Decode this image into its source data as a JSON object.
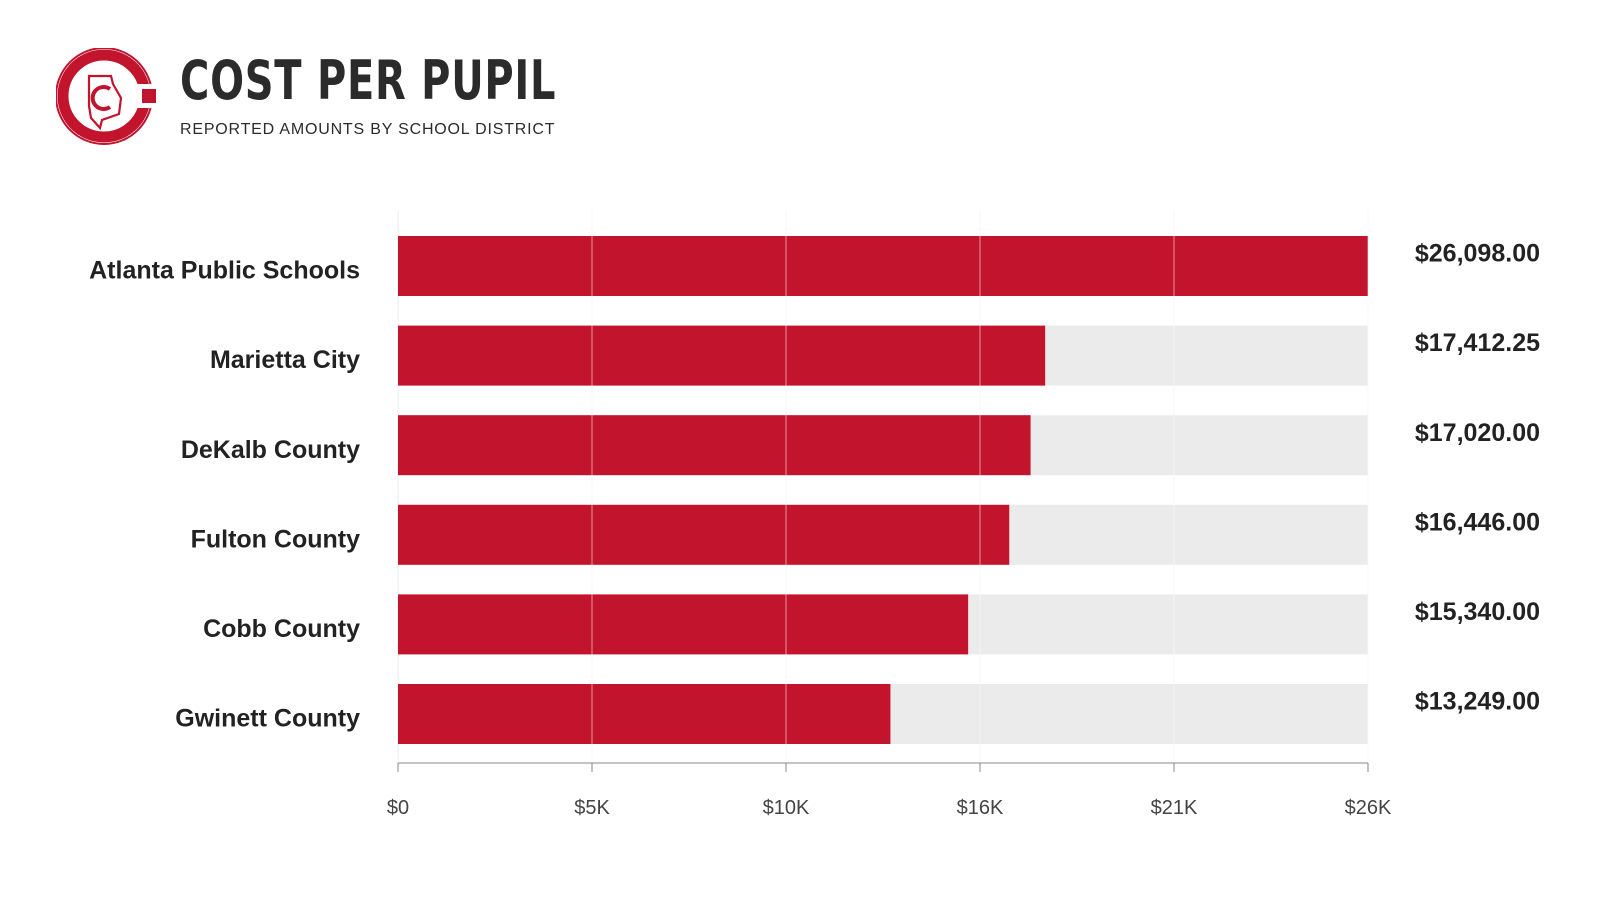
{
  "header": {
    "title": "COST PER PUPIL",
    "subtitle": "REPORTED AMOUNTS BY SCHOOL DISTRICT"
  },
  "colors": {
    "bar": "#c3142d",
    "track": "#ebebeb",
    "logo": "#c3142d"
  },
  "chart_data": {
    "type": "bar",
    "orientation": "horizontal",
    "categories": [
      "Atlanta Public Schools",
      "Marietta City",
      "DeKalb County",
      "Fulton County",
      "Cobb County",
      "Gwinett County"
    ],
    "values": [
      26098.0,
      17412.25,
      17020.0,
      16446.0,
      15340.0,
      13249.0
    ],
    "value_labels": [
      "$26,098.00",
      "$17,412.25",
      "$17,020.00",
      "$16,446.00",
      "$15,340.00",
      "$13,249.00"
    ],
    "xlim": [
      0,
      26098
    ],
    "xticks": [
      {
        "value": 0,
        "label": "$0"
      },
      {
        "value": 5219.6,
        "label": "$5K"
      },
      {
        "value": 10439.2,
        "label": "$10K"
      },
      {
        "value": 15658.8,
        "label": "$16K"
      },
      {
        "value": 20878.4,
        "label": "$21K"
      },
      {
        "value": 26098,
        "label": "$26K"
      }
    ],
    "grid": true,
    "legend": "none"
  }
}
